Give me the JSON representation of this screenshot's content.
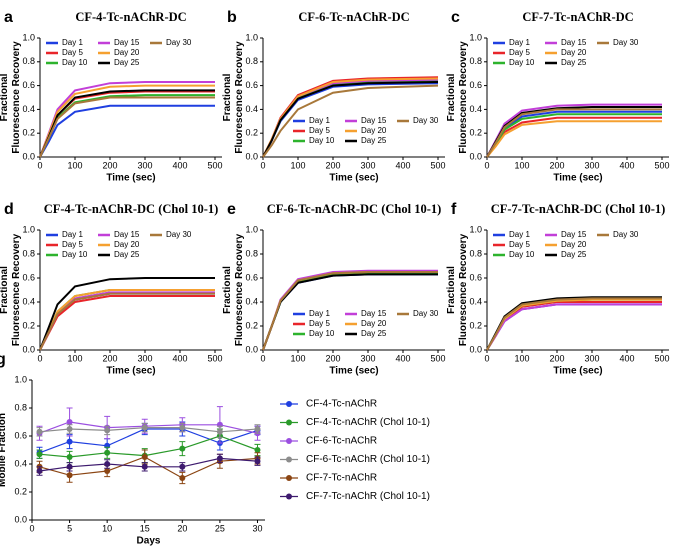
{
  "chart_data": [
    {
      "type": "line",
      "label": "a",
      "title": "CF-4-Tc-nAChR-DC",
      "xlabel": "Time (sec)",
      "ylabel": [
        "Fractional",
        "Fluorescence Recovery"
      ],
      "x": [
        0,
        25,
        50,
        100,
        200,
        300,
        500
      ],
      "xlim": [
        0,
        520
      ],
      "xticks": [
        0,
        100,
        200,
        300,
        400,
        500
      ],
      "ylim": [
        0,
        1
      ],
      "yticks": [
        {
          "value": 0,
          "label": "0.0"
        },
        0.2,
        0.4,
        0.6,
        0.8,
        {
          "value": 1,
          "label": "1.0"
        }
      ],
      "legend": "upper left",
      "series": [
        {
          "name": "Day 1",
          "color": "#1f3fe0",
          "values": [
            0,
            0.13,
            0.27,
            0.38,
            0.43,
            0.43,
            0.43
          ]
        },
        {
          "name": "Day 5",
          "color": "#e8252a",
          "values": [
            0,
            0.17,
            0.35,
            0.49,
            0.54,
            0.55,
            0.55
          ]
        },
        {
          "name": "Day 10",
          "color": "#2db32d",
          "values": [
            0,
            0.16,
            0.33,
            0.46,
            0.51,
            0.52,
            0.52
          ]
        },
        {
          "name": "Day 15",
          "color": "#c23fd8",
          "values": [
            0,
            0.2,
            0.4,
            0.56,
            0.62,
            0.63,
            0.63
          ]
        },
        {
          "name": "Day 20",
          "color": "#f5a030",
          "values": [
            0,
            0.19,
            0.38,
            0.53,
            0.59,
            0.6,
            0.6
          ]
        },
        {
          "name": "Day 25",
          "color": "#000000",
          "values": [
            0,
            0.17,
            0.35,
            0.5,
            0.55,
            0.56,
            0.56
          ]
        },
        {
          "name": "Day 30",
          "color": "#a8783a",
          "values": [
            0,
            0.16,
            0.32,
            0.45,
            0.5,
            0.5,
            0.5
          ]
        }
      ]
    },
    {
      "type": "line",
      "label": "b",
      "title": "CF-6-Tc-nAChR-DC",
      "xlabel": "Time (sec)",
      "ylabel": [
        "Fractional",
        "Fluorescence Recovery"
      ],
      "x": [
        0,
        25,
        50,
        100,
        200,
        300,
        500
      ],
      "xlim": [
        0,
        520
      ],
      "xticks": [
        0,
        100,
        200,
        300,
        400,
        500
      ],
      "ylim": [
        0,
        1
      ],
      "yticks": [
        {
          "value": 0,
          "label": "0.0"
        },
        0.2,
        0.4,
        0.6,
        0.8,
        {
          "value": 1,
          "label": "1.0"
        }
      ],
      "legend": "lower right",
      "series": [
        {
          "name": "Day 1",
          "color": "#1f3fe0",
          "values": [
            0,
            0.14,
            0.3,
            0.48,
            0.59,
            0.61,
            0.62
          ]
        },
        {
          "name": "Day 5",
          "color": "#e8252a",
          "values": [
            0,
            0.15,
            0.33,
            0.52,
            0.64,
            0.66,
            0.67
          ]
        },
        {
          "name": "Day 10",
          "color": "#2db32d",
          "values": [
            0,
            0.14,
            0.31,
            0.5,
            0.61,
            0.63,
            0.64
          ]
        },
        {
          "name": "Day 15",
          "color": "#c23fd8",
          "values": [
            0,
            0.14,
            0.32,
            0.51,
            0.62,
            0.64,
            0.65
          ]
        },
        {
          "name": "Day 20",
          "color": "#f5a030",
          "values": [
            0,
            0.15,
            0.32,
            0.51,
            0.63,
            0.65,
            0.66
          ]
        },
        {
          "name": "Day 25",
          "color": "#000000",
          "values": [
            0,
            0.14,
            0.31,
            0.49,
            0.6,
            0.62,
            0.63
          ]
        },
        {
          "name": "Day 30",
          "color": "#a8783a",
          "values": [
            0,
            0.1,
            0.22,
            0.4,
            0.54,
            0.58,
            0.6
          ]
        }
      ]
    },
    {
      "type": "line",
      "label": "c",
      "title": "CF-7-Tc-nAChR-DC",
      "xlabel": "Time (sec)",
      "ylabel": [
        "Fractional",
        "Fluorescence Recovery"
      ],
      "x": [
        0,
        25,
        50,
        100,
        200,
        300,
        500
      ],
      "xlim": [
        0,
        520
      ],
      "xticks": [
        0,
        100,
        200,
        300,
        400,
        500
      ],
      "ylim": [
        0,
        1
      ],
      "yticks": [
        {
          "value": 0,
          "label": "0.0"
        },
        0.2,
        0.4,
        0.6,
        0.8,
        {
          "value": 1,
          "label": "1.0"
        }
      ],
      "legend": "upper left",
      "series": [
        {
          "name": "Day 1",
          "color": "#1f3fe0",
          "values": [
            0,
            0.12,
            0.24,
            0.34,
            0.38,
            0.38,
            0.38
          ]
        },
        {
          "name": "Day 5",
          "color": "#e8252a",
          "values": [
            0,
            0.1,
            0.21,
            0.29,
            0.33,
            0.33,
            0.33
          ]
        },
        {
          "name": "Day 10",
          "color": "#2db32d",
          "values": [
            0,
            0.11,
            0.23,
            0.32,
            0.36,
            0.36,
            0.36
          ]
        },
        {
          "name": "Day 15",
          "color": "#c23fd8",
          "values": [
            0,
            0.14,
            0.28,
            0.39,
            0.43,
            0.44,
            0.44
          ]
        },
        {
          "name": "Day 20",
          "color": "#f5a030",
          "values": [
            0,
            0.09,
            0.19,
            0.27,
            0.3,
            0.3,
            0.3
          ]
        },
        {
          "name": "Day 25",
          "color": "#000000",
          "values": [
            0,
            0.13,
            0.26,
            0.37,
            0.41,
            0.42,
            0.42
          ]
        },
        {
          "name": "Day 30",
          "color": "#a8783a",
          "values": [
            0,
            0.12,
            0.25,
            0.36,
            0.4,
            0.4,
            0.4
          ]
        }
      ]
    },
    {
      "type": "line",
      "label": "d",
      "title": "CF-4-Tc-nAChR-DC (Chol 10-1)",
      "xlabel": "Time (sec)",
      "ylabel": [
        "Fractional",
        "Fluorescence Recovery"
      ],
      "x": [
        0,
        25,
        50,
        100,
        200,
        300,
        500
      ],
      "xlim": [
        0,
        520
      ],
      "xticks": [
        0,
        100,
        200,
        300,
        400,
        500
      ],
      "ylim": [
        0,
        1
      ],
      "yticks": [
        {
          "value": 0,
          "label": "0.0"
        },
        0.2,
        0.4,
        0.6,
        0.8,
        {
          "value": 1,
          "label": "1.0"
        }
      ],
      "legend": "upper left",
      "series": [
        {
          "name": "Day 1",
          "color": "#1f3fe0",
          "values": [
            0,
            0.15,
            0.3,
            0.42,
            0.47,
            0.47,
            0.47
          ]
        },
        {
          "name": "Day 5",
          "color": "#e8252a",
          "values": [
            0,
            0.14,
            0.28,
            0.4,
            0.45,
            0.45,
            0.45
          ]
        },
        {
          "name": "Day 10",
          "color": "#2db32d",
          "values": [
            0,
            0.16,
            0.32,
            0.45,
            0.5,
            0.5,
            0.5
          ]
        },
        {
          "name": "Day 15",
          "color": "#c23fd8",
          "values": [
            0,
            0.15,
            0.3,
            0.43,
            0.48,
            0.48,
            0.48
          ]
        },
        {
          "name": "Day 20",
          "color": "#f5a030",
          "values": [
            0,
            0.16,
            0.32,
            0.45,
            0.5,
            0.5,
            0.5
          ]
        },
        {
          "name": "Day 25",
          "color": "#000000",
          "values": [
            0,
            0.19,
            0.38,
            0.53,
            0.59,
            0.6,
            0.6
          ]
        },
        {
          "name": "Day 30",
          "color": "#a8783a",
          "values": [
            0,
            0.15,
            0.3,
            0.42,
            0.47,
            0.47,
            0.47
          ]
        }
      ]
    },
    {
      "type": "line",
      "label": "e",
      "title": "CF-6-Tc-nAChR-DC (Chol 10-1)",
      "xlabel": "Time (sec)",
      "ylabel": [
        "Fractional",
        "Fluorescence Recovery"
      ],
      "x": [
        0,
        25,
        50,
        100,
        200,
        300,
        500
      ],
      "xlim": [
        0,
        520
      ],
      "xticks": [
        0,
        100,
        200,
        300,
        400,
        500
      ],
      "ylim": [
        0,
        1
      ],
      "yticks": [
        {
          "value": 0,
          "label": "0.0"
        },
        0.2,
        0.4,
        0.6,
        0.8,
        {
          "value": 1,
          "label": "1.0"
        }
      ],
      "legend": "lower right",
      "series": [
        {
          "name": "Day 1",
          "color": "#1f3fe0",
          "values": [
            0,
            0.2,
            0.4,
            0.56,
            0.62,
            0.63,
            0.63
          ]
        },
        {
          "name": "Day 5",
          "color": "#e8252a",
          "values": [
            0,
            0.2,
            0.41,
            0.58,
            0.64,
            0.65,
            0.65
          ]
        },
        {
          "name": "Day 10",
          "color": "#2db32d",
          "values": [
            0,
            0.2,
            0.4,
            0.57,
            0.63,
            0.64,
            0.64
          ]
        },
        {
          "name": "Day 15",
          "color": "#c23fd8",
          "values": [
            0,
            0.2,
            0.42,
            0.59,
            0.65,
            0.66,
            0.66
          ]
        },
        {
          "name": "Day 20",
          "color": "#f5a030",
          "values": [
            0,
            0.2,
            0.41,
            0.58,
            0.64,
            0.65,
            0.65
          ]
        },
        {
          "name": "Day 25",
          "color": "#000000",
          "values": [
            0,
            0.2,
            0.4,
            0.56,
            0.62,
            0.63,
            0.63
          ]
        },
        {
          "name": "Day 30",
          "color": "#a8783a",
          "values": [
            0,
            0.2,
            0.41,
            0.58,
            0.64,
            0.65,
            0.65
          ]
        }
      ]
    },
    {
      "type": "line",
      "label": "f",
      "title": "CF-7-Tc-nAChR-DC (Chol 10-1)",
      "xlabel": "Time (sec)",
      "ylabel": [
        "Fractional",
        "Fluorescence Recovery"
      ],
      "x": [
        0,
        25,
        50,
        100,
        200,
        300,
        500
      ],
      "xlim": [
        0,
        520
      ],
      "xticks": [
        0,
        100,
        200,
        300,
        400,
        500
      ],
      "ylim": [
        0,
        1
      ],
      "yticks": [
        {
          "value": 0,
          "label": "0.0"
        },
        0.2,
        0.4,
        0.6,
        0.8,
        {
          "value": 1,
          "label": "1.0"
        }
      ],
      "legend": "upper left",
      "series": [
        {
          "name": "Day 1",
          "color": "#1f3fe0",
          "values": [
            0,
            0.12,
            0.24,
            0.34,
            0.38,
            0.38,
            0.38
          ]
        },
        {
          "name": "Day 5",
          "color": "#e8252a",
          "values": [
            0,
            0.12,
            0.25,
            0.36,
            0.4,
            0.4,
            0.4
          ]
        },
        {
          "name": "Day 10",
          "color": "#2db32d",
          "values": [
            0,
            0.13,
            0.26,
            0.37,
            0.41,
            0.42,
            0.42
          ]
        },
        {
          "name": "Day 15",
          "color": "#c23fd8",
          "values": [
            0,
            0.12,
            0.24,
            0.34,
            0.38,
            0.38,
            0.38
          ]
        },
        {
          "name": "Day 20",
          "color": "#f5a030",
          "values": [
            0,
            0.13,
            0.26,
            0.37,
            0.41,
            0.42,
            0.42
          ]
        },
        {
          "name": "Day 25",
          "color": "#000000",
          "values": [
            0,
            0.14,
            0.28,
            0.39,
            0.43,
            0.44,
            0.44
          ]
        },
        {
          "name": "Day 30",
          "color": "#a8783a",
          "values": [
            0,
            0.13,
            0.27,
            0.38,
            0.42,
            0.43,
            0.43
          ]
        }
      ]
    },
    {
      "type": "errorbar",
      "label": "g",
      "xlabel": "Days",
      "ylabel": [
        "Mobile Fraction"
      ],
      "x": [
        1,
        5,
        10,
        15,
        20,
        25,
        30
      ],
      "xlim": [
        0,
        31
      ],
      "xticks": [
        0,
        5,
        10,
        15,
        20,
        25,
        30
      ],
      "ylim": [
        0,
        1
      ],
      "yticks": [
        {
          "value": 0,
          "label": "0.0"
        },
        0.2,
        0.4,
        0.6,
        0.8,
        {
          "value": 1,
          "label": "1.0"
        }
      ],
      "legend": "right",
      "series": [
        {
          "name": "CF-4-Tc-nAChR",
          "color": "#1f3fe0",
          "values": [
            0.48,
            0.56,
            0.53,
            0.65,
            0.65,
            0.55,
            0.64
          ],
          "errors": [
            0.04,
            0.05,
            0.05,
            0.04,
            0.05,
            0.05,
            0.03
          ]
        },
        {
          "name": "CF-4-Tc-nAChR (Chol 10-1)",
          "color": "#2a9a2a",
          "values": [
            0.47,
            0.45,
            0.48,
            0.46,
            0.51,
            0.6,
            0.5
          ],
          "errors": [
            0.03,
            0.04,
            0.04,
            0.05,
            0.05,
            0.05,
            0.04
          ]
        },
        {
          "name": "CF-6-Tc-nAChR",
          "color": "#9b4fe0",
          "values": [
            0.62,
            0.7,
            0.66,
            0.67,
            0.68,
            0.68,
            0.62
          ],
          "errors": [
            0.05,
            0.1,
            0.08,
            0.05,
            0.05,
            0.13,
            0.05
          ]
        },
        {
          "name": "CF-6-Tc-nAChR (Chol 10-1)",
          "color": "#8c8c8c",
          "values": [
            0.63,
            0.65,
            0.64,
            0.66,
            0.66,
            0.63,
            0.65
          ],
          "errors": [
            0.03,
            0.03,
            0.03,
            0.03,
            0.03,
            0.04,
            0.03
          ]
        },
        {
          "name": "CF-7-Tc-nAChR",
          "color": "#8b4513",
          "values": [
            0.38,
            0.32,
            0.35,
            0.45,
            0.3,
            0.42,
            0.44
          ],
          "errors": [
            0.04,
            0.05,
            0.04,
            0.05,
            0.04,
            0.05,
            0.04
          ]
        },
        {
          "name": "CF-7-Tc-nAChR (Chol 10-1)",
          "color": "#3d1a6e",
          "values": [
            0.35,
            0.38,
            0.4,
            0.38,
            0.38,
            0.44,
            0.42
          ],
          "errors": [
            0.03,
            0.03,
            0.03,
            0.03,
            0.03,
            0.03,
            0.03
          ]
        }
      ]
    }
  ]
}
